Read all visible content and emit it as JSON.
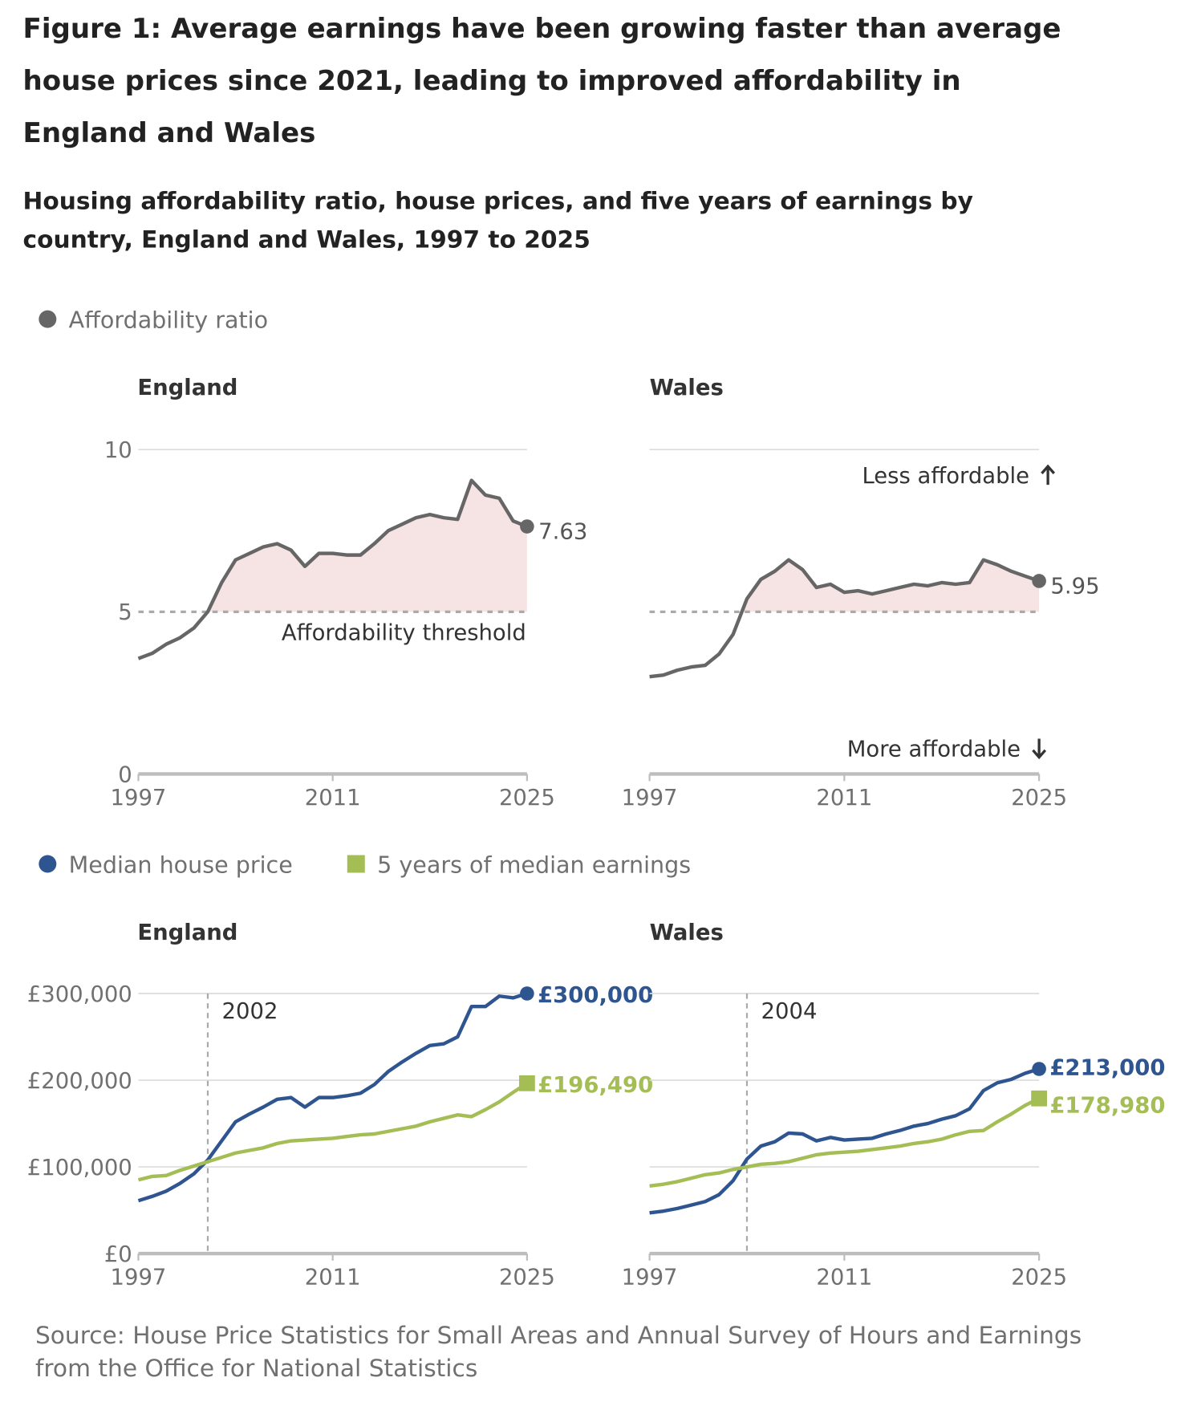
{
  "title": "Figure 1: Average earnings have been growing faster than average house prices since 2021, leading to improved affordability in England and Wales",
  "subtitle": "Housing affordability ratio, house prices, and five years of earnings by country, England and Wales, 1997 to 2025",
  "source": "Source: House Price Statistics for Small Areas and Annual Survey of Hours and Earnings from the Office for National Statistics",
  "colors": {
    "ratio": "#666666",
    "ratio_fill": "#f6e3e3",
    "house_price": "#2f5590",
    "earnings": "#a4bd55"
  },
  "legend_top": {
    "ratio": "Affordability ratio"
  },
  "legend_bottom": {
    "house_price": "Median house price",
    "earnings": "5 years of median earnings"
  },
  "annotations": {
    "threshold": "Affordability threshold",
    "less": "Less affordable",
    "more": "More affordable",
    "less_icon": "arrow-up-icon",
    "more_icon": "arrow-down-icon"
  },
  "chart_data": [
    {
      "type": "area",
      "panel": "England",
      "title": "England",
      "x": [
        1997,
        1998,
        1999,
        2000,
        2001,
        2002,
        2003,
        2004,
        2005,
        2006,
        2007,
        2008,
        2009,
        2010,
        2011,
        2012,
        2013,
        2014,
        2015,
        2016,
        2017,
        2018,
        2019,
        2020,
        2021,
        2022,
        2023,
        2024,
        2025
      ],
      "series": [
        {
          "name": "Affordability ratio",
          "values": [
            3.56,
            3.72,
            4.0,
            4.2,
            4.5,
            5.0,
            5.9,
            6.6,
            6.8,
            7.0,
            7.1,
            6.9,
            6.4,
            6.8,
            6.8,
            6.75,
            6.75,
            7.1,
            7.5,
            7.7,
            7.9,
            8.0,
            7.9,
            7.85,
            9.05,
            8.6,
            8.5,
            7.8,
            7.63
          ]
        }
      ],
      "end_label": "7.63",
      "threshold": 5,
      "ylim": [
        0,
        10
      ],
      "yticks": [
        "0",
        "5",
        "10"
      ],
      "xticks": [
        "1997",
        "2011",
        "2025"
      ],
      "grid": true
    },
    {
      "type": "area",
      "panel": "Wales",
      "title": "Wales",
      "x": [
        1997,
        1998,
        1999,
        2000,
        2001,
        2002,
        2003,
        2004,
        2005,
        2006,
        2007,
        2008,
        2009,
        2010,
        2011,
        2012,
        2013,
        2014,
        2015,
        2016,
        2017,
        2018,
        2019,
        2020,
        2021,
        2022,
        2023,
        2024,
        2025
      ],
      "series": [
        {
          "name": "Affordability ratio",
          "values": [
            3.0,
            3.05,
            3.2,
            3.3,
            3.35,
            3.7,
            4.3,
            5.4,
            6.0,
            6.25,
            6.6,
            6.3,
            5.75,
            5.85,
            5.6,
            5.65,
            5.55,
            5.65,
            5.75,
            5.85,
            5.8,
            5.9,
            5.85,
            5.9,
            6.6,
            6.45,
            6.25,
            6.1,
            5.95
          ]
        }
      ],
      "end_label": "5.95",
      "threshold": 5,
      "ylim": [
        0,
        10
      ],
      "xticks": [
        "1997",
        "2011",
        "2025"
      ],
      "grid": true
    },
    {
      "type": "line",
      "panel": "England",
      "title": "England",
      "x": [
        1997,
        1998,
        1999,
        2000,
        2001,
        2002,
        2003,
        2004,
        2005,
        2006,
        2007,
        2008,
        2009,
        2010,
        2011,
        2012,
        2013,
        2014,
        2015,
        2016,
        2017,
        2018,
        2019,
        2020,
        2021,
        2022,
        2023,
        2024,
        2025
      ],
      "series": [
        {
          "name": "Median house price",
          "values": [
            61000,
            66000,
            72000,
            81000,
            92000,
            108000,
            130000,
            152000,
            161000,
            169000,
            178000,
            180000,
            169000,
            180000,
            180000,
            182000,
            185000,
            195000,
            210000,
            221000,
            231000,
            240000,
            242000,
            250000,
            285000,
            285000,
            297000,
            295000,
            300000
          ],
          "end_label": "£300,000"
        },
        {
          "name": "5 years of median earnings",
          "values": [
            85000,
            89000,
            90000,
            96000,
            101000,
            106000,
            111000,
            116000,
            119000,
            122000,
            127000,
            130000,
            131000,
            132000,
            133000,
            135000,
            137000,
            138000,
            141000,
            144000,
            147000,
            152000,
            156000,
            160000,
            158000,
            166000,
            175000,
            186000,
            196490
          ],
          "end_label": "£196,490"
        }
      ],
      "marker_year": 2002,
      "marker_label": "2002",
      "ylim": [
        0,
        300000
      ],
      "yticks": [
        "£0",
        "£100,000",
        "£200,000",
        "£300,000"
      ],
      "xticks": [
        "1997",
        "2011",
        "2025"
      ],
      "grid": true
    },
    {
      "type": "line",
      "panel": "Wales",
      "title": "Wales",
      "x": [
        1997,
        1998,
        1999,
        2000,
        2001,
        2002,
        2003,
        2004,
        2005,
        2006,
        2007,
        2008,
        2009,
        2010,
        2011,
        2012,
        2013,
        2014,
        2015,
        2016,
        2017,
        2018,
        2019,
        2020,
        2021,
        2022,
        2023,
        2024,
        2025
      ],
      "series": [
        {
          "name": "Median house price",
          "values": [
            47000,
            49000,
            52000,
            56000,
            60000,
            68000,
            84000,
            109000,
            124000,
            129000,
            139000,
            138000,
            130000,
            134000,
            131000,
            132000,
            133000,
            138000,
            142000,
            147000,
            150000,
            155000,
            159000,
            167000,
            188000,
            197000,
            201000,
            208000,
            213000
          ],
          "end_label": "£213,000"
        },
        {
          "name": "5 years of median earnings",
          "values": [
            78000,
            80000,
            83000,
            87000,
            91000,
            93000,
            97000,
            100000,
            103000,
            104000,
            106000,
            110000,
            114000,
            116000,
            117000,
            118000,
            120000,
            122000,
            124000,
            127000,
            129000,
            132000,
            137000,
            141000,
            142000,
            152000,
            161000,
            171000,
            178980
          ],
          "end_label": "£178,980"
        }
      ],
      "marker_year": 2004,
      "marker_label": "2004",
      "ylim": [
        0,
        300000
      ],
      "xticks": [
        "1997",
        "2011",
        "2025"
      ],
      "grid": true
    }
  ]
}
